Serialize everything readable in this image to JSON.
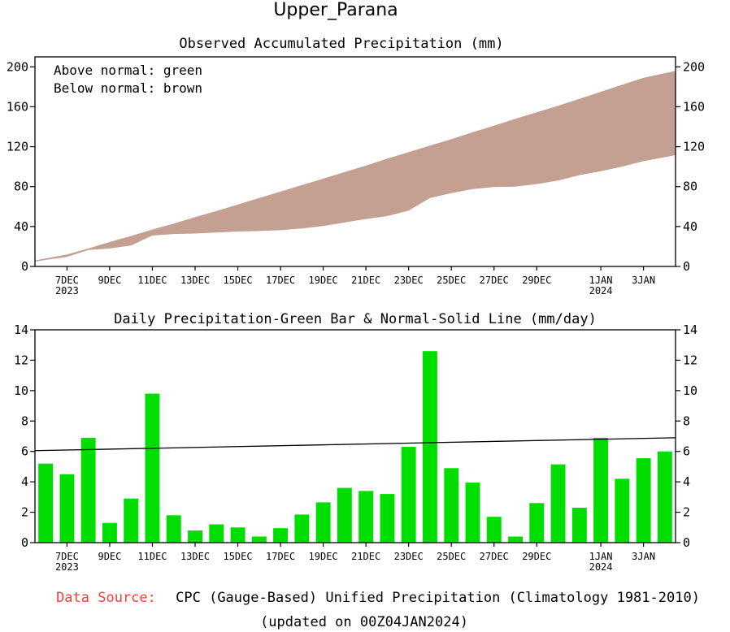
{
  "header": {
    "title": "Upper_Parana"
  },
  "footer": {
    "source_label": "Data Source:",
    "source_text": "CPC (Gauge-Based) Unified Precipitation (Climatology 1981-2010)",
    "updated_text": "(updated on 00Z04JAN2024)"
  },
  "colors": {
    "below_normal_fill": "#c4a092",
    "bar_fill": "#00dd00",
    "normal_line": "#000000",
    "source_label": "#ff3b3b"
  },
  "chart_data": [
    {
      "type": "area",
      "title": "Observed Accumulated Precipitation (mm)",
      "annotations": [
        "Above normal: green",
        "Below normal: brown"
      ],
      "ylim": [
        0,
        210
      ],
      "yticks": [
        0,
        40,
        80,
        120,
        160,
        200
      ],
      "x_tick_labels": [
        {
          "day": 1,
          "label": "7DEC",
          "sub": "2023"
        },
        {
          "day": 3,
          "label": "9DEC"
        },
        {
          "day": 5,
          "label": "11DEC"
        },
        {
          "day": 7,
          "label": "13DEC"
        },
        {
          "day": 9,
          "label": "15DEC"
        },
        {
          "day": 11,
          "label": "17DEC"
        },
        {
          "day": 13,
          "label": "19DEC"
        },
        {
          "day": 15,
          "label": "21DEC"
        },
        {
          "day": 17,
          "label": "23DEC"
        },
        {
          "day": 19,
          "label": "25DEC"
        },
        {
          "day": 21,
          "label": "27DEC"
        },
        {
          "day": 23,
          "label": "29DEC"
        },
        {
          "day": 26,
          "label": "1JAN",
          "sub": "2024"
        },
        {
          "day": 28,
          "label": "3JAN"
        }
      ],
      "dates": [
        "6DEC",
        "7DEC",
        "8DEC",
        "9DEC",
        "10DEC",
        "11DEC",
        "12DEC",
        "13DEC",
        "14DEC",
        "15DEC",
        "16DEC",
        "17DEC",
        "18DEC",
        "19DEC",
        "20DEC",
        "21DEC",
        "22DEC",
        "23DEC",
        "24DEC",
        "25DEC",
        "26DEC",
        "27DEC",
        "28DEC",
        "29DEC",
        "30DEC",
        "31DEC",
        "1JAN",
        "2JAN",
        "3JAN",
        "4JAN"
      ],
      "series": [
        {
          "role": "observed",
          "values": [
            5,
            9.5,
            16.5,
            18,
            21,
            31,
            32.5,
            33,
            34,
            35,
            35.5,
            36.3,
            38,
            40.5,
            44,
            47.5,
            50.5,
            56,
            68.5,
            73.5,
            77.5,
            79.5,
            80,
            82.5,
            86,
            91.5,
            95.5,
            100,
            105.5,
            111.5
          ]
        },
        {
          "role": "normal",
          "values": [
            6,
            12,
            18,
            24.5,
            30.5,
            37,
            43,
            49.5,
            55.5,
            62,
            68.5,
            75,
            81.5,
            88,
            94.5,
            101,
            108,
            114.5,
            121,
            127.5,
            134.5,
            141,
            148,
            154.5,
            161,
            168,
            175,
            182,
            189,
            196
          ]
        }
      ]
    },
    {
      "type": "bar",
      "title": "Daily Precipitation-Green Bar & Normal-Solid Line (mm/day)",
      "ylim": [
        0,
        14
      ],
      "yticks": [
        0,
        2,
        4,
        6,
        8,
        10,
        12,
        14
      ],
      "x_tick_labels": [
        {
          "day": 1,
          "label": "7DEC",
          "sub": "2023"
        },
        {
          "day": 3,
          "label": "9DEC"
        },
        {
          "day": 5,
          "label": "11DEC"
        },
        {
          "day": 7,
          "label": "13DEC"
        },
        {
          "day": 9,
          "label": "15DEC"
        },
        {
          "day": 11,
          "label": "17DEC"
        },
        {
          "day": 13,
          "label": "19DEC"
        },
        {
          "day": 15,
          "label": "21DEC"
        },
        {
          "day": 17,
          "label": "23DEC"
        },
        {
          "day": 19,
          "label": "25DEC"
        },
        {
          "day": 21,
          "label": "27DEC"
        },
        {
          "day": 23,
          "label": "29DEC"
        },
        {
          "day": 26,
          "label": "1JAN",
          "sub": "2024"
        },
        {
          "day": 28,
          "label": "3JAN"
        }
      ],
      "dates": [
        "6DEC",
        "7DEC",
        "8DEC",
        "9DEC",
        "10DEC",
        "11DEC",
        "12DEC",
        "13DEC",
        "14DEC",
        "15DEC",
        "16DEC",
        "17DEC",
        "18DEC",
        "19DEC",
        "20DEC",
        "21DEC",
        "22DEC",
        "23DEC",
        "24DEC",
        "25DEC",
        "26DEC",
        "27DEC",
        "28DEC",
        "29DEC",
        "30DEC",
        "31DEC",
        "1JAN",
        "2JAN",
        "3JAN",
        "4JAN"
      ],
      "values": [
        5.2,
        4.5,
        6.9,
        1.3,
        2.9,
        9.8,
        1.8,
        0.8,
        1.2,
        1.0,
        0.4,
        0.95,
        1.85,
        2.65,
        3.6,
        3.4,
        3.2,
        6.3,
        12.6,
        4.9,
        3.95,
        1.7,
        0.4,
        2.6,
        5.15,
        2.3,
        6.9,
        4.2,
        5.55,
        6.0
      ],
      "normal_line": {
        "start": 6.05,
        "end": 6.9
      }
    }
  ]
}
